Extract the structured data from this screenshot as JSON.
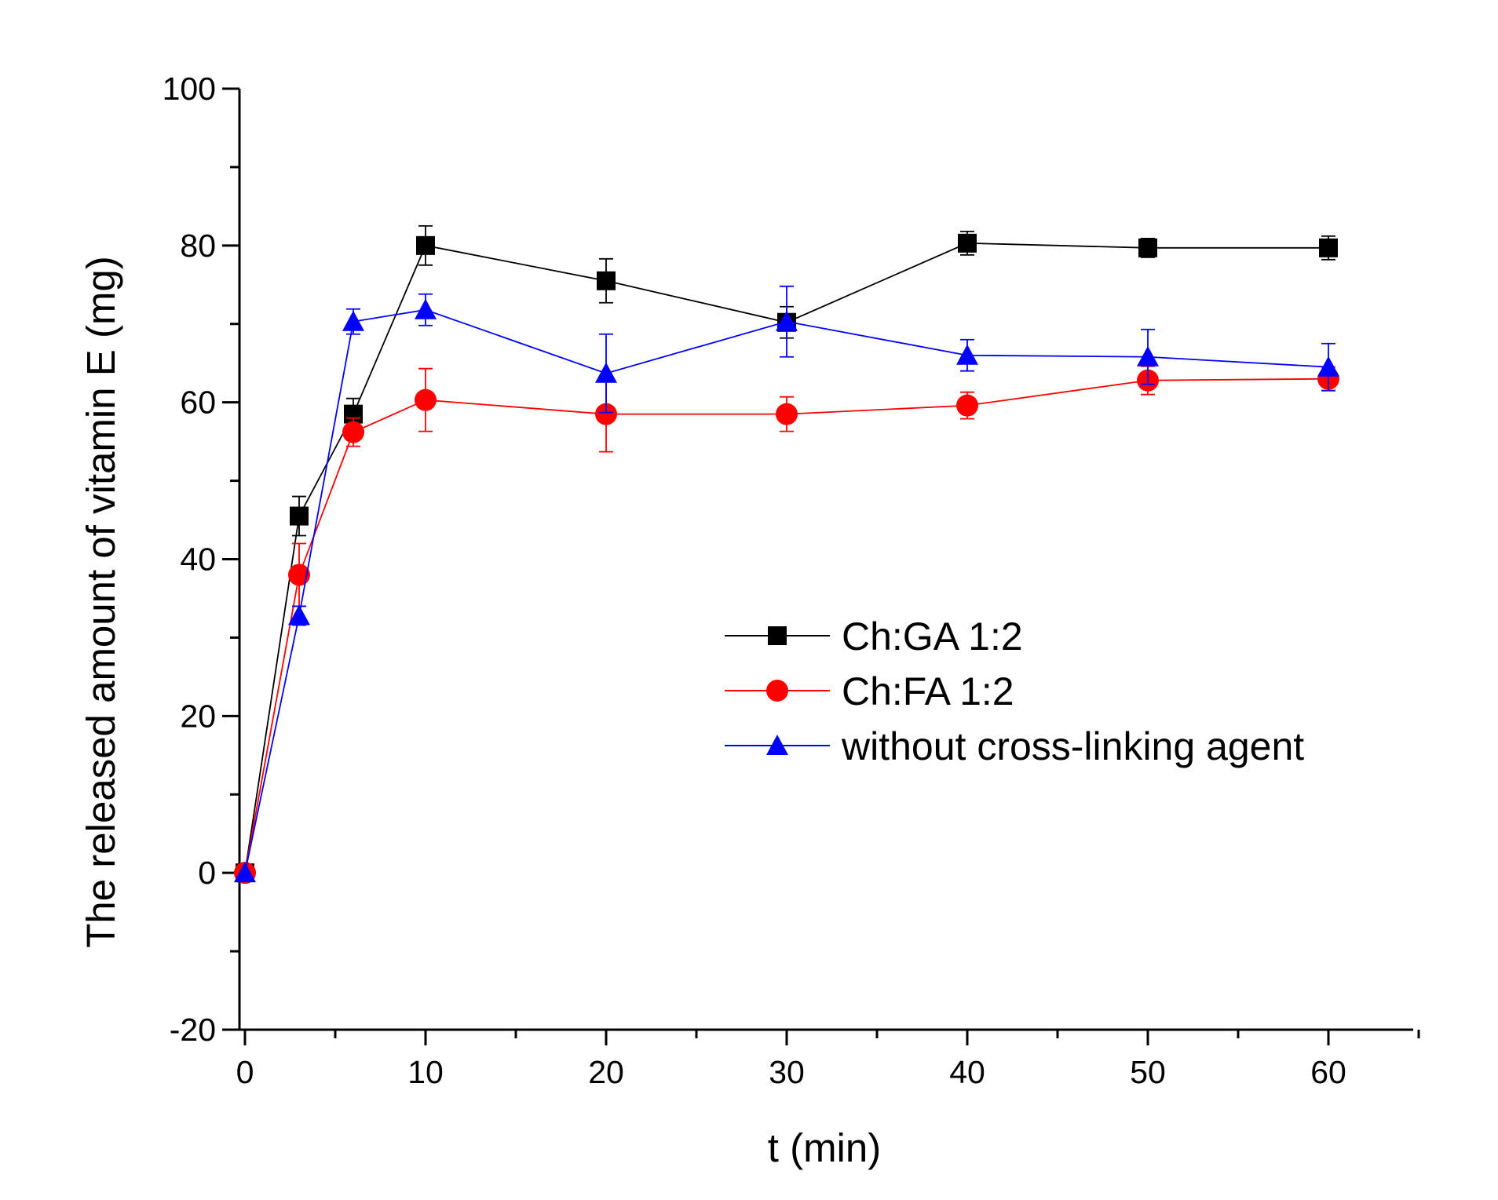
{
  "chart_data": {
    "type": "line",
    "title": "",
    "xlabel": "t (min)",
    "ylabel": "The released amount of vitamin E (mg)",
    "xlim": [
      0,
      65
    ],
    "ylim": [
      -20,
      100
    ],
    "x_ticks": [
      0,
      10,
      20,
      30,
      40,
      50,
      60
    ],
    "x_minor_ticks": [
      5,
      15,
      25,
      35,
      45,
      55,
      65
    ],
    "y_ticks": [
      -20,
      0,
      20,
      40,
      60,
      80,
      100
    ],
    "y_minor_ticks": [
      -10,
      10,
      30,
      50,
      70,
      90
    ],
    "grid": false,
    "legend_position": "center-right",
    "x": [
      0,
      3,
      6,
      10,
      20,
      30,
      40,
      50,
      60
    ],
    "series": [
      {
        "name": "Ch:GA 1:2",
        "color": "#000000",
        "marker": "square",
        "values": [
          0,
          45.5,
          58.5,
          80,
          75.5,
          70.2,
          80.3,
          79.7,
          79.7
        ],
        "errors": [
          0,
          2.5,
          2,
          2.5,
          2.8,
          2,
          1.5,
          1.2,
          1.5
        ]
      },
      {
        "name": "Ch:FA 1:2",
        "color": "#ff0000",
        "marker": "circle",
        "values": [
          0,
          38,
          56.2,
          60.3,
          58.5,
          58.5,
          59.6,
          62.8,
          63
        ],
        "errors": [
          0,
          4,
          1.8,
          4,
          4.8,
          2.2,
          1.7,
          1.8,
          1.5
        ]
      },
      {
        "name": "without cross-linking agent",
        "color": "#0000ff",
        "marker": "triangle",
        "values": [
          0,
          32.8,
          70.3,
          71.8,
          63.7,
          70.3,
          66,
          65.8,
          64.5
        ],
        "errors": [
          0,
          1.2,
          1.6,
          2,
          5,
          4.5,
          2,
          3.5,
          3
        ]
      }
    ]
  }
}
